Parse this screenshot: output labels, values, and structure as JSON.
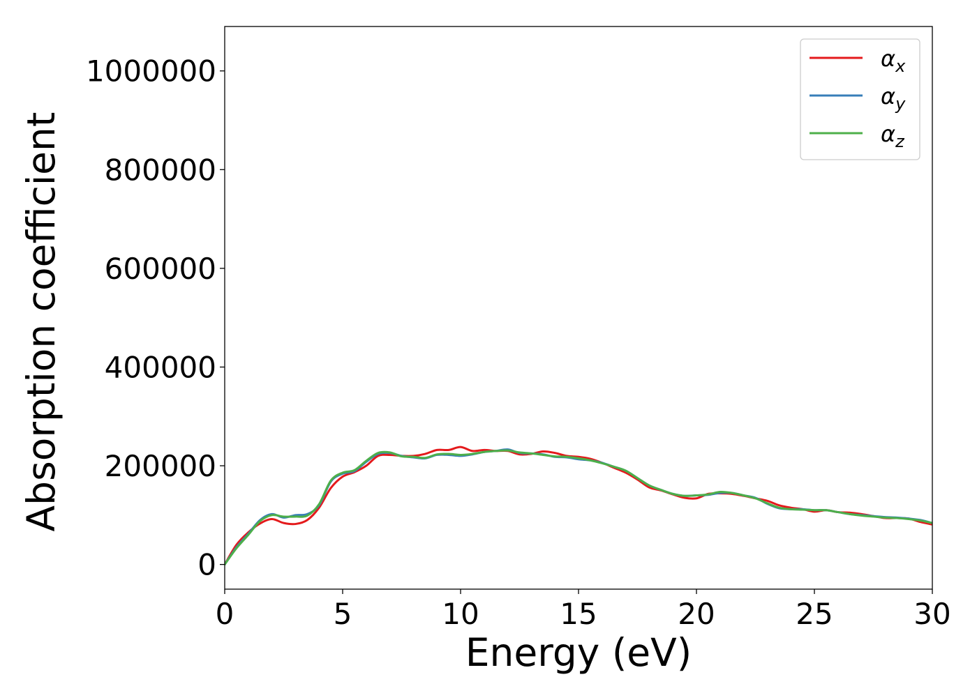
{
  "chart_data": {
    "type": "line",
    "title": "",
    "xlabel": "Energy (eV)",
    "ylabel": "Absorption coefficient",
    "xlim": [
      0,
      30
    ],
    "ylim": [
      -50000,
      1090000
    ],
    "xticks": [
      0,
      5,
      10,
      15,
      20,
      25,
      30
    ],
    "xtick_labels": [
      "0",
      "5",
      "10",
      "15",
      "20",
      "25",
      "30"
    ],
    "yticks": [
      0,
      200000,
      400000,
      600000,
      800000,
      1000000
    ],
    "ytick_labels": [
      "0",
      "200000",
      "400000",
      "600000",
      "800000",
      "1000000"
    ],
    "grid": false,
    "legend_position": "top-right",
    "series": [
      {
        "name": "α_x",
        "label_main": "α",
        "label_sub": "x",
        "color": "#e41a1c",
        "points": [
          [
            0,
            0
          ],
          [
            0.5,
            40000
          ],
          [
            1,
            65000
          ],
          [
            1.5,
            83000
          ],
          [
            2,
            92000
          ],
          [
            2.5,
            84000
          ],
          [
            3,
            82000
          ],
          [
            3.5,
            90000
          ],
          [
            4,
            115000
          ],
          [
            4.5,
            155000
          ],
          [
            5,
            178000
          ],
          [
            5.5,
            187000
          ],
          [
            6,
            200000
          ],
          [
            6.5,
            220000
          ],
          [
            7,
            222000
          ],
          [
            7.5,
            220000
          ],
          [
            8,
            220000
          ],
          [
            8.5,
            224000
          ],
          [
            9,
            232000
          ],
          [
            9.5,
            232000
          ],
          [
            10,
            238000
          ],
          [
            10.5,
            230000
          ],
          [
            11,
            232000
          ],
          [
            11.5,
            230000
          ],
          [
            12,
            230000
          ],
          [
            12.5,
            223000
          ],
          [
            13,
            224000
          ],
          [
            13.5,
            229000
          ],
          [
            14,
            226000
          ],
          [
            14.5,
            220000
          ],
          [
            15,
            218000
          ],
          [
            15.5,
            214000
          ],
          [
            16,
            206000
          ],
          [
            16.5,
            196000
          ],
          [
            17,
            186000
          ],
          [
            17.5,
            172000
          ],
          [
            18,
            156000
          ],
          [
            18.5,
            150000
          ],
          [
            19,
            142000
          ],
          [
            19.5,
            135000
          ],
          [
            20,
            134000
          ],
          [
            20.5,
            143000
          ],
          [
            21,
            144000
          ],
          [
            21.5,
            143000
          ],
          [
            22,
            139000
          ],
          [
            22.5,
            134000
          ],
          [
            23,
            129000
          ],
          [
            23.5,
            120000
          ],
          [
            24,
            115000
          ],
          [
            24.5,
            112000
          ],
          [
            25,
            107000
          ],
          [
            25.5,
            110000
          ],
          [
            26,
            106000
          ],
          [
            26.5,
            105000
          ],
          [
            27,
            102000
          ],
          [
            27.5,
            98000
          ],
          [
            28,
            94000
          ],
          [
            28.5,
            94000
          ],
          [
            29,
            93000
          ],
          [
            29.5,
            86000
          ],
          [
            30,
            81000
          ]
        ]
      },
      {
        "name": "α_y",
        "label_main": "α",
        "label_sub": "y",
        "color": "#377eb8",
        "points": [
          [
            0,
            0
          ],
          [
            0.5,
            35000
          ],
          [
            1,
            62000
          ],
          [
            1.5,
            90000
          ],
          [
            2,
            102000
          ],
          [
            2.5,
            95000
          ],
          [
            3,
            100000
          ],
          [
            3.5,
            102000
          ],
          [
            4,
            120000
          ],
          [
            4.5,
            168000
          ],
          [
            5,
            184000
          ],
          [
            5.5,
            189000
          ],
          [
            6,
            208000
          ],
          [
            6.5,
            224000
          ],
          [
            7,
            226000
          ],
          [
            7.5,
            220000
          ],
          [
            8,
            217000
          ],
          [
            8.5,
            215000
          ],
          [
            9,
            222000
          ],
          [
            9.5,
            222000
          ],
          [
            10,
            220000
          ],
          [
            10.5,
            223000
          ],
          [
            11,
            228000
          ],
          [
            11.5,
            230000
          ],
          [
            12,
            233000
          ],
          [
            12.5,
            226000
          ],
          [
            13,
            225000
          ],
          [
            13.5,
            223000
          ],
          [
            14,
            218000
          ],
          [
            14.5,
            217000
          ],
          [
            15,
            213000
          ],
          [
            15.5,
            211000
          ],
          [
            16,
            206000
          ],
          [
            16.5,
            198000
          ],
          [
            17,
            190000
          ],
          [
            17.5,
            175000
          ],
          [
            18,
            160000
          ],
          [
            18.5,
            151000
          ],
          [
            19,
            143000
          ],
          [
            19.5,
            139000
          ],
          [
            20,
            140000
          ],
          [
            20.5,
            141000
          ],
          [
            21,
            145000
          ],
          [
            21.5,
            145000
          ],
          [
            22,
            140000
          ],
          [
            22.5,
            135000
          ],
          [
            23,
            123000
          ],
          [
            23.5,
            114000
          ],
          [
            24,
            112000
          ],
          [
            24.5,
            112000
          ],
          [
            25,
            110000
          ],
          [
            25.5,
            110000
          ],
          [
            26,
            106000
          ],
          [
            26.5,
            102000
          ],
          [
            27,
            100000
          ],
          [
            27.5,
            98000
          ],
          [
            28,
            96000
          ],
          [
            28.5,
            95000
          ],
          [
            29,
            93000
          ],
          [
            29.5,
            90000
          ],
          [
            30,
            84000
          ]
        ]
      },
      {
        "name": "α_z",
        "label_main": "α",
        "label_sub": "z",
        "color": "#4daf4a",
        "points": [
          [
            0,
            0
          ],
          [
            0.5,
            33000
          ],
          [
            1,
            60000
          ],
          [
            1.5,
            88000
          ],
          [
            2,
            100000
          ],
          [
            2.5,
            97000
          ],
          [
            3,
            97000
          ],
          [
            3.5,
            99000
          ],
          [
            4,
            122000
          ],
          [
            4.5,
            170000
          ],
          [
            5,
            186000
          ],
          [
            5.5,
            191000
          ],
          [
            6,
            210000
          ],
          [
            6.5,
            226000
          ],
          [
            7,
            227000
          ],
          [
            7.5,
            219000
          ],
          [
            8,
            218000
          ],
          [
            8.5,
            216000
          ],
          [
            9,
            223000
          ],
          [
            9.5,
            224000
          ],
          [
            10,
            222000
          ],
          [
            10.5,
            224000
          ],
          [
            11,
            228000
          ],
          [
            11.5,
            230000
          ],
          [
            12,
            231000
          ],
          [
            12.5,
            227000
          ],
          [
            13,
            225000
          ],
          [
            13.5,
            222000
          ],
          [
            14,
            219000
          ],
          [
            14.5,
            218000
          ],
          [
            15,
            215000
          ],
          [
            15.5,
            211000
          ],
          [
            16,
            205000
          ],
          [
            16.5,
            198000
          ],
          [
            17,
            190000
          ],
          [
            17.5,
            175000
          ],
          [
            18,
            160000
          ],
          [
            18.5,
            151000
          ],
          [
            19,
            143000
          ],
          [
            19.5,
            139000
          ],
          [
            20,
            140000
          ],
          [
            20.5,
            142000
          ],
          [
            21,
            147000
          ],
          [
            21.5,
            145000
          ],
          [
            22,
            140000
          ],
          [
            22.5,
            134000
          ],
          [
            23,
            124000
          ],
          [
            23.5,
            115000
          ],
          [
            24,
            112000
          ],
          [
            24.5,
            111000
          ],
          [
            25,
            110000
          ],
          [
            25.5,
            110000
          ],
          [
            26,
            106000
          ],
          [
            26.5,
            102000
          ],
          [
            27,
            99000
          ],
          [
            27.5,
            97000
          ],
          [
            28,
            95000
          ],
          [
            28.5,
            94000
          ],
          [
            29,
            92000
          ],
          [
            29.5,
            89000
          ],
          [
            30,
            84000
          ]
        ]
      }
    ]
  }
}
